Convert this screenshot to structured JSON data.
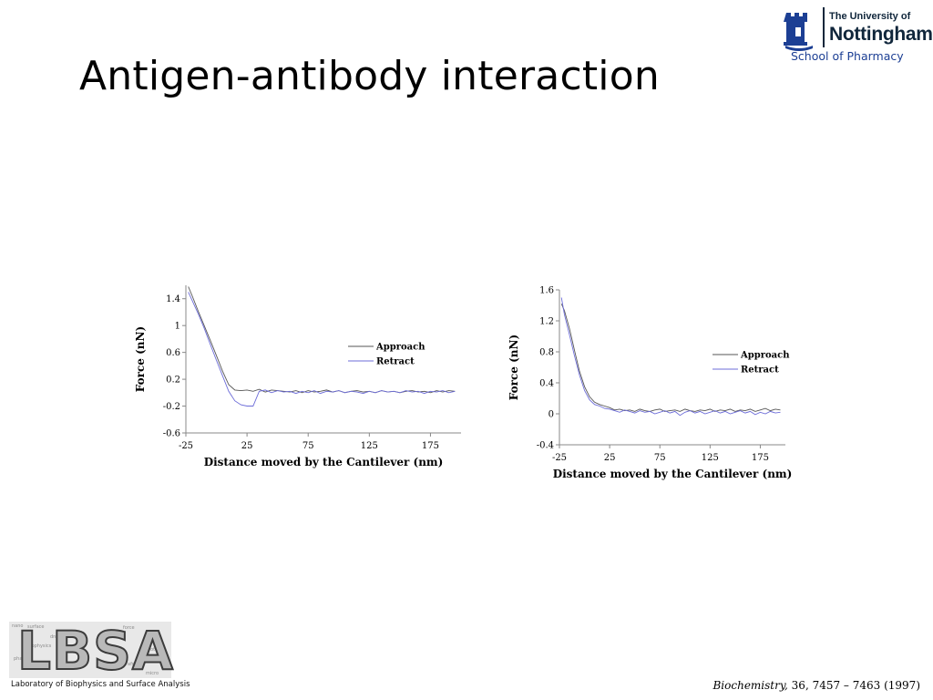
{
  "slide": {
    "title": "Antigen-antibody interaction"
  },
  "logo": {
    "line1": "The University of",
    "line2": "Nottingham",
    "department": "School of Pharmacy"
  },
  "lbsa": {
    "mark": "LBSA",
    "tagline": "Laboratory of Biophysics and Surface Analysis",
    "background_words": [
      "nano",
      "surface",
      "force",
      "dna",
      "biophysics",
      "protein",
      "pharm",
      "afm",
      "micro"
    ]
  },
  "citation": {
    "journal": "Biochemistry,",
    "details": " 36, 7457 – 7463 (1997)"
  },
  "colors": {
    "approach": "#555555",
    "retract": "#6c6cd8",
    "axis": "#888888"
  },
  "chart_data": [
    {
      "type": "line",
      "xlabel": "Distance moved by the Cantilever (nm)",
      "ylabel": "Force (nN)",
      "xlim": [
        -25,
        200
      ],
      "ylim": [
        -0.6,
        1.6
      ],
      "xticks": [
        -25,
        25,
        75,
        125,
        175
      ],
      "xtick_labels": [
        "-25",
        "25",
        "75",
        "125",
        "175"
      ],
      "yticks": [
        -0.6,
        -0.2,
        0.2,
        0.6,
        1,
        1.4
      ],
      "ytick_labels": [
        "-0.6",
        "-0.2",
        "0.2",
        "0.6",
        "1",
        "1.4"
      ],
      "legend_position": "right",
      "series": [
        {
          "name": "Approach",
          "x": [
            -23,
            -20,
            -15,
            -10,
            -5,
            0,
            5,
            10,
            15,
            20,
            25,
            30,
            35,
            40,
            45,
            50,
            55,
            60,
            65,
            70,
            75,
            80,
            85,
            90,
            95,
            100,
            105,
            110,
            115,
            120,
            125,
            130,
            135,
            140,
            145,
            150,
            155,
            160,
            165,
            170,
            175,
            180,
            185,
            190,
            195
          ],
          "y": [
            1.58,
            1.45,
            1.22,
            1.0,
            0.78,
            0.55,
            0.32,
            0.12,
            0.04,
            0.03,
            0.04,
            0.02,
            0.05,
            0.01,
            0.04,
            0.03,
            0.02,
            0.01,
            0.03,
            0.0,
            0.03,
            0.01,
            0.02,
            0.04,
            0.01,
            0.03,
            0.0,
            0.02,
            0.03,
            0.01,
            0.02,
            0.0,
            0.03,
            0.01,
            0.02,
            0.0,
            0.02,
            0.03,
            0.01,
            0.02,
            0.0,
            0.03,
            0.01,
            0.03,
            0.02
          ]
        },
        {
          "name": "Retract",
          "x": [
            -23,
            -20,
            -15,
            -10,
            -5,
            0,
            5,
            10,
            15,
            20,
            25,
            30,
            35,
            40,
            45,
            50,
            55,
            60,
            65,
            70,
            75,
            80,
            85,
            90,
            95,
            100,
            105,
            110,
            115,
            120,
            125,
            130,
            135,
            140,
            145,
            150,
            155,
            160,
            165,
            170,
            175,
            180,
            185,
            190,
            195
          ],
          "y": [
            1.5,
            1.38,
            1.18,
            0.96,
            0.72,
            0.48,
            0.25,
            0.02,
            -0.12,
            -0.18,
            -0.2,
            -0.2,
            0.02,
            0.04,
            0.0,
            0.03,
            0.01,
            0.02,
            -0.01,
            0.02,
            0.0,
            0.03,
            -0.01,
            0.02,
            0.01,
            0.03,
            0.0,
            0.02,
            0.01,
            -0.01,
            0.02,
            0.0,
            0.03,
            0.01,
            0.02,
            0.0,
            0.03,
            0.01,
            0.02,
            -0.01,
            0.02,
            0.01,
            0.03,
            0.0,
            0.02
          ]
        }
      ]
    },
    {
      "type": "line",
      "xlabel": "Distance moved by the Cantilever (nm)",
      "ylabel": "Force (nN)",
      "xlim": [
        -25,
        200
      ],
      "ylim": [
        -0.4,
        1.6
      ],
      "xticks": [
        -25,
        25,
        75,
        125,
        175
      ],
      "xtick_labels": [
        "-25",
        "25",
        "75",
        "125",
        "175"
      ],
      "yticks": [
        -0.4,
        0,
        0.4,
        0.8,
        1.2,
        1.6
      ],
      "ytick_labels": [
        "-0.4",
        "0",
        "0.4",
        "0.8",
        "1.2",
        "1.6"
      ],
      "legend_position": "right",
      "series": [
        {
          "name": "Approach",
          "x": [
            -23,
            -20,
            -15,
            -10,
            -5,
            0,
            5,
            10,
            15,
            20,
            25,
            30,
            35,
            40,
            45,
            50,
            55,
            60,
            65,
            70,
            75,
            80,
            85,
            90,
            95,
            100,
            105,
            110,
            115,
            120,
            125,
            130,
            135,
            140,
            145,
            150,
            155,
            160,
            165,
            170,
            175,
            180,
            185,
            190,
            195
          ],
          "y": [
            1.42,
            1.33,
            1.1,
            0.82,
            0.55,
            0.35,
            0.22,
            0.15,
            0.12,
            0.1,
            0.08,
            0.05,
            0.06,
            0.04,
            0.05,
            0.03,
            0.06,
            0.04,
            0.03,
            0.05,
            0.06,
            0.03,
            0.04,
            0.05,
            0.03,
            0.06,
            0.04,
            0.03,
            0.05,
            0.04,
            0.06,
            0.03,
            0.05,
            0.04,
            0.06,
            0.03,
            0.05,
            0.04,
            0.06,
            0.03,
            0.05,
            0.07,
            0.04,
            0.06,
            0.05
          ]
        },
        {
          "name": "Retract",
          "x": [
            -23,
            -20,
            -15,
            -10,
            -5,
            0,
            5,
            10,
            15,
            20,
            25,
            30,
            35,
            40,
            45,
            50,
            55,
            60,
            65,
            70,
            75,
            80,
            85,
            90,
            95,
            100,
            105,
            110,
            115,
            120,
            125,
            130,
            135,
            140,
            145,
            150,
            155,
            160,
            165,
            170,
            175,
            180,
            185,
            190,
            195
          ],
          "y": [
            1.5,
            1.28,
            1.02,
            0.75,
            0.5,
            0.3,
            0.18,
            0.12,
            0.1,
            0.07,
            0.06,
            0.04,
            0.02,
            0.05,
            0.03,
            0.01,
            0.04,
            0.02,
            0.03,
            0.0,
            0.02,
            0.04,
            0.01,
            0.03,
            -0.02,
            0.02,
            0.04,
            0.01,
            0.03,
            0.0,
            0.02,
            0.04,
            0.01,
            0.03,
            0.0,
            0.02,
            0.04,
            0.01,
            0.03,
            -0.01,
            0.02,
            0.0,
            0.03,
            0.01,
            0.02
          ]
        }
      ]
    }
  ]
}
